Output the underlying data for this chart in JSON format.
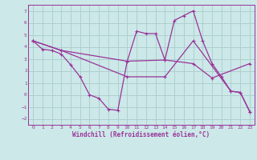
{
  "background_color": "#cce8e8",
  "grid_color": "#aacccc",
  "line_color": "#993399",
  "xlim": [
    -0.5,
    23.5
  ],
  "ylim": [
    -2.5,
    7.5
  ],
  "xticks": [
    0,
    1,
    2,
    3,
    4,
    5,
    6,
    7,
    8,
    9,
    10,
    11,
    12,
    13,
    14,
    15,
    16,
    17,
    18,
    19,
    20,
    21,
    22,
    23
  ],
  "yticks": [
    -2,
    -1,
    0,
    1,
    2,
    3,
    4,
    5,
    6,
    7
  ],
  "xlabel": "Windchill (Refroidissement éolien,°C)",
  "series1_x": [
    0,
    1,
    2,
    3,
    4,
    5,
    6,
    7,
    8,
    9,
    10,
    11,
    12,
    13,
    14,
    15,
    16,
    17,
    18,
    19,
    20,
    21,
    22,
    23
  ],
  "series1_y": [
    4.5,
    3.8,
    3.7,
    3.4,
    2.5,
    1.5,
    0.0,
    -0.3,
    -1.2,
    -1.3,
    2.8,
    5.3,
    5.1,
    5.1,
    2.9,
    6.2,
    6.6,
    7.0,
    4.5,
    2.6,
    1.5,
    0.3,
    0.2,
    -1.4
  ],
  "series2_x": [
    0,
    3,
    10,
    14,
    17,
    19,
    23
  ],
  "series2_y": [
    4.5,
    3.7,
    2.8,
    2.9,
    2.6,
    1.4,
    2.6
  ],
  "series3_x": [
    0,
    3,
    10,
    14,
    17,
    21,
    22,
    23
  ],
  "series3_y": [
    4.5,
    3.7,
    1.5,
    1.5,
    4.5,
    0.3,
    0.2,
    -1.4
  ]
}
